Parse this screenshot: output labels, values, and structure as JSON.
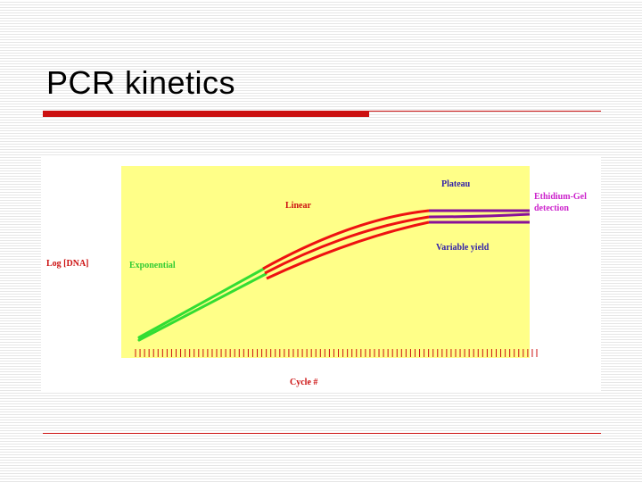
{
  "slide": {
    "title": "PCR kinetics"
  },
  "diagram": {
    "y_axis_label": "Log [DNA]",
    "x_axis_label": "Cycle #",
    "phases": {
      "exponential": "Exponential",
      "linear": "Linear",
      "plateau": "Plateau"
    },
    "annotations": {
      "variable_yield": "Variable yield",
      "detection_line1": "Ethidium-Gel",
      "detection_line2": "detection"
    },
    "colors": {
      "plot_background": "#ffff88",
      "exponential": "#33dd33",
      "linear": "#ee1111",
      "plateau": "#881199",
      "label_red": "#cc1111",
      "label_green": "#33cc33",
      "label_blue": "#3322aa",
      "label_magenta": "#cc22cc"
    }
  }
}
